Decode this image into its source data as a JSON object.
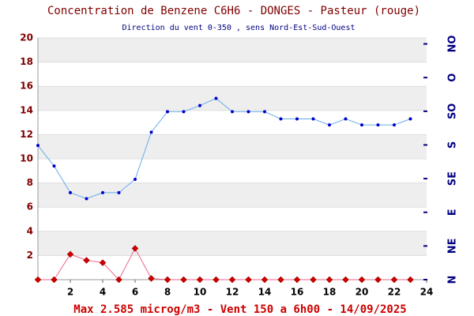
{
  "chart_data": {
    "type": "line",
    "title": "Concentration de Benzene C6H6  -   DONGES - Pasteur (rouge)",
    "subtitle": "Direction du vent 0-350 , sens Nord-Est-Sud-Ouest",
    "footer": "Max 2.585 microg/m3 - Vent 150  a 6h00 - 14/09/2025",
    "x": [
      0,
      1,
      2,
      3,
      4,
      5,
      6,
      7,
      8,
      9,
      10,
      11,
      12,
      13,
      14,
      15,
      16,
      17,
      18,
      19,
      20,
      21,
      22,
      23
    ],
    "series": [
      {
        "color": "#0000cc",
        "line_color": "#66aaee",
        "marker": "circle",
        "values": [
          11.1,
          9.4,
          7.2,
          6.7,
          7.2,
          7.2,
          8.3,
          12.2,
          13.9,
          13.9,
          14.4,
          15.0,
          13.9,
          13.9,
          13.9,
          13.3,
          13.3,
          13.3,
          12.8,
          13.3,
          12.8,
          12.8,
          12.8,
          13.3
        ]
      },
      {
        "color": "#cc0000",
        "line_color": "#ee6688",
        "marker": "diamond",
        "values": [
          0,
          0,
          2.1,
          1.6,
          1.4,
          0,
          2.585,
          0.1,
          0,
          0,
          0,
          0,
          0,
          0,
          0,
          0,
          0,
          0,
          0,
          0,
          0,
          0,
          0,
          0
        ]
      }
    ],
    "xlim": [
      0,
      24
    ],
    "xticks": [
      2,
      4,
      6,
      8,
      10,
      12,
      14,
      16,
      18,
      20,
      22,
      24
    ],
    "ylim": [
      0,
      20
    ],
    "yticks": [
      2,
      4,
      6,
      8,
      10,
      12,
      14,
      16,
      18,
      20
    ],
    "y2lim": [
      0,
      323
    ],
    "y2ticks": [
      {
        "value": 0,
        "label": "N"
      },
      {
        "value": 45,
        "label": "NE"
      },
      {
        "value": 90,
        "label": "E"
      },
      {
        "value": 135,
        "label": "SE"
      },
      {
        "value": 180,
        "label": "S"
      },
      {
        "value": 225,
        "label": "SO"
      },
      {
        "value": 270,
        "label": "O"
      },
      {
        "value": 315,
        "label": "NO"
      }
    ],
    "grid": true
  }
}
